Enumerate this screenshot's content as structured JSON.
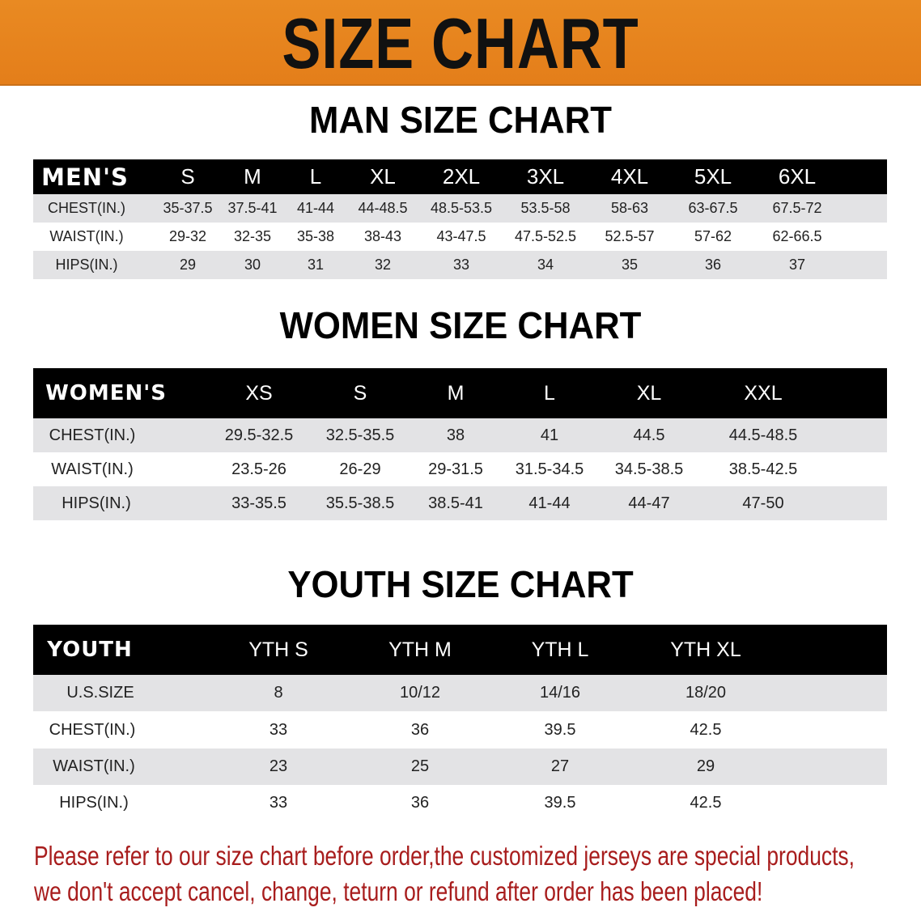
{
  "banner": {
    "title": "SIZE CHART",
    "color": "#e8841e"
  },
  "men": {
    "title": "MAN SIZE CHART",
    "header": [
      "MEN'S",
      "S",
      "M",
      "L",
      "XL",
      "2XL",
      "3XL",
      "4XL",
      "5XL",
      "6XL"
    ],
    "rows": [
      [
        "CHEST(IN.)",
        "35-37.5",
        "37.5-41",
        "41-44",
        "44-48.5",
        "48.5-53.5",
        "53.5-58",
        "58-63",
        "63-67.5",
        "67.5-72"
      ],
      [
        "WAIST(IN.)",
        "29-32",
        "32-35",
        "35-38",
        "38-43",
        "43-47.5",
        "47.5-52.5",
        "52.5-57",
        "57-62",
        "62-66.5"
      ],
      [
        "HIPS(IN.)",
        "29",
        "30",
        "31",
        "32",
        "33",
        "34",
        "35",
        "36",
        "37"
      ]
    ]
  },
  "women": {
    "title": "WOMEN SIZE CHART",
    "header": [
      "WOMEN'S",
      "XS",
      "S",
      "M",
      "L",
      "XL",
      "XXL"
    ],
    "rows": [
      [
        "CHEST(IN.)",
        "29.5-32.5",
        "32.5-35.5",
        "38",
        "41",
        "44.5",
        "44.5-48.5"
      ],
      [
        "WAIST(IN.)",
        "23.5-26",
        "26-29",
        "29-31.5",
        "31.5-34.5",
        "34.5-38.5",
        "38.5-42.5"
      ],
      [
        "HIPS(IN.)",
        "33-35.5",
        "35.5-38.5",
        "38.5-41",
        "41-44",
        "44-47",
        "47-50"
      ]
    ]
  },
  "youth": {
    "title": "YOUTH SIZE CHART",
    "header": [
      "YOUTH",
      "YTH S",
      "YTH M",
      "YTH L",
      "YTH XL"
    ],
    "rows": [
      [
        "U.S.SIZE",
        "8",
        "10/12",
        "14/16",
        "18/20"
      ],
      [
        "CHEST(IN.)",
        "33",
        "36",
        "39.5",
        "42.5"
      ],
      [
        "WAIST(IN.)",
        "23",
        "25",
        "27",
        "29"
      ],
      [
        "HIPS(IN.)",
        "33",
        "36",
        "39.5",
        "42.5"
      ]
    ]
  },
  "notice": {
    "line1": "Please refer to our size chart before order,the customized jerseys are special products,",
    "line2": "we don't accept cancel, change, teturn or refund after order has been placed!",
    "color": "#a81d1d"
  }
}
